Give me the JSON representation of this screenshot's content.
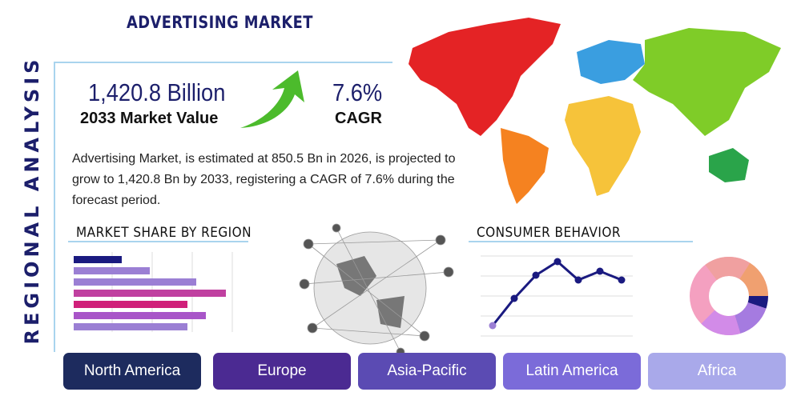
{
  "header": {
    "title": "ADVERTISING MARKET",
    "side_label": "REGIONAL ANALYSIS"
  },
  "stats": {
    "market_value": "1,420.8 Billion",
    "market_value_label": "2033 Market Value",
    "cagr": "7.6%",
    "cagr_label": "CAGR"
  },
  "description": "Advertising Market, is estimated at 850.5 Bn in 2026, is projected to grow to 1,420.8 Bn by 2033, registering a CAGR of 7.6% during the forecast period.",
  "sections": {
    "market_share": "MARKET SHARE BY REGION",
    "consumer_behavior": "CONSUMER BEHAVIOR"
  },
  "regions": [
    "North America",
    "Europe",
    "Asia-Pacific",
    "Latin America",
    "Africa"
  ]
}
